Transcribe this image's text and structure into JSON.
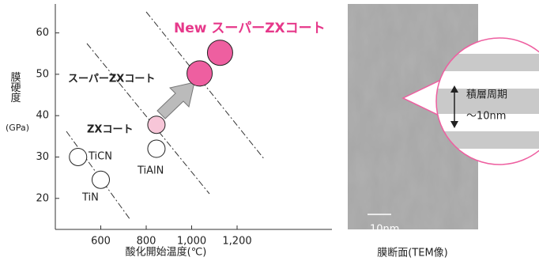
{
  "chart_data": {
    "type": "scatter",
    "xlabel": "酸化開始温度(℃)",
    "ylabel": "膜硬度",
    "ylabel_unit": "(GPa)",
    "xlim": [
      400,
      1600
    ],
    "ylim": [
      12.5,
      67
    ],
    "xticks": [
      600,
      800,
      {
        "value": 1000,
        "label": "1,000"
      },
      {
        "value": 1200,
        "label": "1,200"
      }
    ],
    "yticks": [
      20,
      30,
      40,
      50,
      60
    ],
    "series": [
      {
        "name": "TiCN",
        "color": "#ffffff",
        "x": [
          500
        ],
        "values": [
          30
        ]
      },
      {
        "name": "TiN",
        "color": "#ffffff",
        "x": [
          600
        ],
        "values": [
          24.5
        ]
      },
      {
        "name": "TiAlN",
        "color": "#ffffff",
        "x": [
          845
        ],
        "values": [
          32
        ]
      },
      {
        "name": "ZXコート",
        "color": "#f7c6d8",
        "x": [
          845
        ],
        "values": [
          37.8
        ]
      },
      {
        "name": "New スーパーZXコート",
        "color": "#ee5fa0",
        "x": [
          1035,
          1125
        ],
        "values": [
          50.2,
          55.2
        ]
      }
    ],
    "annotation": "スーパーZXコート"
  },
  "image_panel": {
    "caption": "膜断面(TEM像)",
    "scale_label": "10nm",
    "inset_label": "積層周期",
    "inset_period": "〜10nm"
  }
}
